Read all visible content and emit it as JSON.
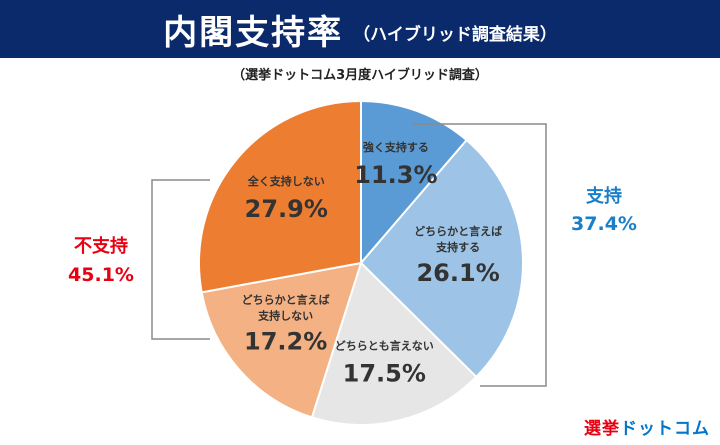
{
  "header": {
    "title": "内閣支持率",
    "subtitle": "（ハイブリッド調査結果）"
  },
  "caption": "（選挙ドットコム3月度ハイブリッド調査）",
  "chart_data": {
    "type": "pie",
    "slices": [
      {
        "label": "強く支持する",
        "value": 11.3,
        "display": "11.3%",
        "color": "#5b9bd5"
      },
      {
        "label": "どちらかと言えば支持する",
        "value": 26.1,
        "display": "26.1%",
        "color": "#9dc3e6"
      },
      {
        "label": "どちらとも言えない",
        "value": 17.5,
        "display": "17.5%",
        "color": "#e7e6e6"
      },
      {
        "label": "どちらかと言えば支持しない",
        "value": 17.2,
        "display": "17.2%",
        "color": "#f4b183"
      },
      {
        "label": "全く支持しない",
        "value": 27.9,
        "display": "27.9%",
        "color": "#ed7d31"
      }
    ],
    "groups": [
      {
        "name": "支持",
        "value": "37.4%",
        "color": "#1a7fc9"
      },
      {
        "name": "不支持",
        "value": "45.1%",
        "color": "#e60012"
      }
    ]
  },
  "branding": {
    "part1": "選挙",
    "part2": "ドットコム"
  }
}
